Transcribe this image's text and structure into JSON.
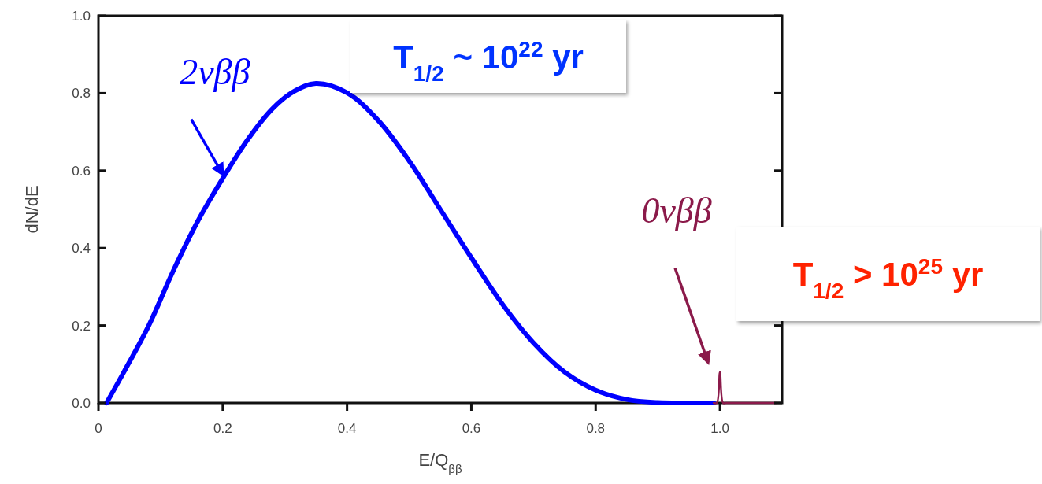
{
  "chart_data": {
    "type": "line",
    "xlabel": "E/Q$_{ββ}$",
    "ylabel": "dN/dE",
    "xlim": [
      0,
      1.1
    ],
    "ylim": [
      0,
      1
    ],
    "xticks": [
      0,
      0.2,
      0.4,
      0.6,
      0.8,
      {
        "value": 1,
        "label": "1.0"
      }
    ],
    "yticks": [
      {
        "value": 0,
        "label": "0.0"
      },
      0.2,
      0.4,
      0.6,
      0.8,
      {
        "value": 1,
        "label": "1.0"
      }
    ],
    "grid": false,
    "series": [
      {
        "name": "2νββ",
        "color": "#0000ff",
        "x": [
          0.013,
          0.041,
          0.081,
          0.12,
          0.16,
          0.2,
          0.24,
          0.28,
          0.315,
          0.35,
          0.4,
          0.45,
          0.5,
          0.55,
          0.6,
          0.65,
          0.7,
          0.75,
          0.8,
          0.85,
          0.9,
          0.95,
          0.99
        ],
        "values": [
          0,
          0.08,
          0.2,
          0.34,
          0.47,
          0.58,
          0.68,
          0.76,
          0.805,
          0.825,
          0.801,
          0.73,
          0.625,
          0.5,
          0.375,
          0.255,
          0.155,
          0.08,
          0.033,
          0.009,
          0.001,
          0,
          0
        ]
      },
      {
        "name": "0νββ",
        "color": "#8b1a4a",
        "x": [
          0.99,
          0.995,
          1.0,
          1.005,
          1.01,
          1.09
        ],
        "values": [
          0,
          0,
          0.08,
          0,
          0,
          0
        ]
      }
    ],
    "annotations": [
      "T$_{1/2}$ ~ 10$^{22}$ yr",
      "T$_{1/2}$ > 10$^{25}$ yr"
    ]
  }
}
